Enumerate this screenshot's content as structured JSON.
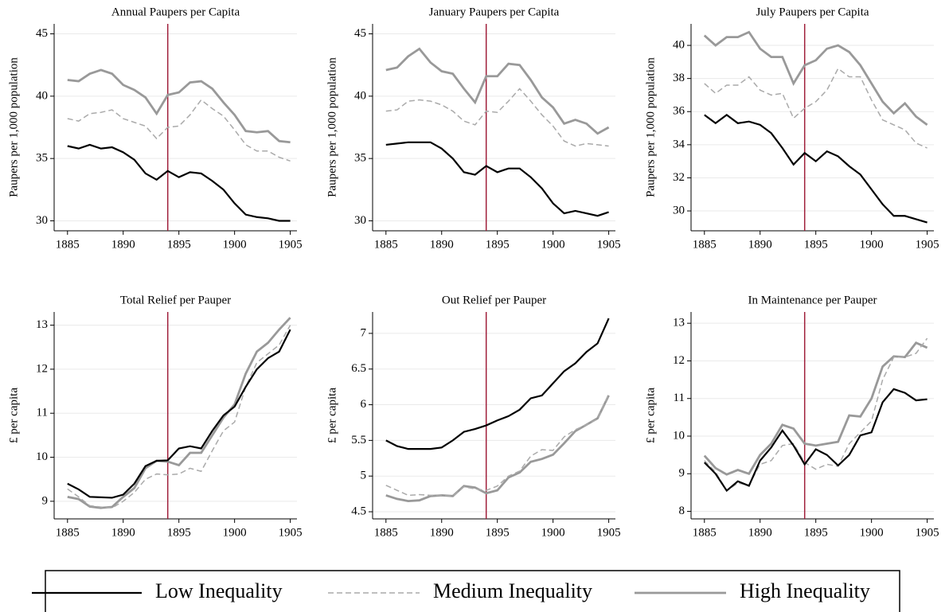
{
  "chart_data": [
    {
      "type": "line",
      "title": "Annual Paupers per Capita",
      "y_label": "Paupers per 1,000 population",
      "x": [
        1885,
        1886,
        1887,
        1888,
        1889,
        1890,
        1891,
        1892,
        1893,
        1894,
        1895,
        1896,
        1897,
        1898,
        1899,
        1900,
        1901,
        1902,
        1903,
        1904,
        1905
      ],
      "xlim": [
        1883.8,
        1905.6
      ],
      "xticks": [
        1885,
        1890,
        1895,
        1900,
        1905
      ],
      "ylim": [
        29.2,
        45.8
      ],
      "yticks": [
        30,
        35,
        40,
        45
      ],
      "grid": true,
      "vline": 1894,
      "vline_color": "#a0203c",
      "series": [
        {
          "name": "Low Inequality",
          "color": "#000000",
          "dashed": false,
          "values": [
            36.0,
            35.8,
            36.1,
            35.8,
            35.9,
            35.5,
            34.9,
            33.8,
            33.3,
            34.0,
            33.5,
            33.9,
            33.8,
            33.2,
            32.5,
            31.4,
            30.5,
            30.3,
            30.2,
            30.0,
            30.0
          ]
        },
        {
          "name": "Medium Inequality",
          "color": "#aaaaaa",
          "dashed": true,
          "values": [
            38.2,
            38.0,
            38.6,
            38.7,
            38.9,
            38.2,
            37.9,
            37.6,
            36.6,
            37.5,
            37.6,
            38.5,
            39.7,
            39.0,
            38.4,
            37.3,
            36.1,
            35.6,
            35.6,
            35.1,
            34.8
          ]
        },
        {
          "name": "High Inequality",
          "color": "#999999",
          "dashed": false,
          "values": [
            41.3,
            41.2,
            41.8,
            42.1,
            41.8,
            40.9,
            40.5,
            39.9,
            38.6,
            40.1,
            40.3,
            41.1,
            41.2,
            40.6,
            39.5,
            38.5,
            37.2,
            37.1,
            37.2,
            36.4,
            36.3
          ]
        }
      ]
    },
    {
      "type": "line",
      "title": "January Paupers per Capita",
      "y_label": "Paupers per 1,000 population",
      "x": [
        1885,
        1886,
        1887,
        1888,
        1889,
        1890,
        1891,
        1892,
        1893,
        1894,
        1895,
        1896,
        1897,
        1898,
        1899,
        1900,
        1901,
        1902,
        1903,
        1904,
        1905
      ],
      "xlim": [
        1883.8,
        1905.6
      ],
      "xticks": [
        1885,
        1890,
        1895,
        1900,
        1905
      ],
      "ylim": [
        29.2,
        45.8
      ],
      "yticks": [
        30,
        35,
        40,
        45
      ],
      "grid": true,
      "vline": 1894,
      "vline_color": "#a0203c",
      "series": [
        {
          "name": "Low Inequality",
          "color": "#000000",
          "dashed": false,
          "values": [
            36.1,
            36.2,
            36.3,
            36.3,
            36.3,
            35.8,
            35.0,
            33.9,
            33.7,
            34.4,
            33.9,
            34.2,
            34.2,
            33.5,
            32.6,
            31.4,
            30.6,
            30.8,
            30.6,
            30.4,
            30.7
          ]
        },
        {
          "name": "Medium Inequality",
          "color": "#aaaaaa",
          "dashed": true,
          "values": [
            38.8,
            38.9,
            39.6,
            39.7,
            39.6,
            39.3,
            38.8,
            38.0,
            37.7,
            38.8,
            38.7,
            39.6,
            40.6,
            39.6,
            38.5,
            37.6,
            36.4,
            36.0,
            36.2,
            36.1,
            36.0
          ]
        },
        {
          "name": "High Inequality",
          "color": "#999999",
          "dashed": false,
          "values": [
            42.1,
            42.3,
            43.2,
            43.8,
            42.7,
            42.0,
            41.8,
            40.6,
            39.5,
            41.6,
            41.6,
            42.6,
            42.5,
            41.3,
            39.9,
            39.1,
            37.8,
            38.1,
            37.8,
            37.0,
            37.5
          ]
        }
      ]
    },
    {
      "type": "line",
      "title": "July Paupers per Capita",
      "y_label": "Paupers per 1,000 population",
      "x": [
        1885,
        1886,
        1887,
        1888,
        1889,
        1890,
        1891,
        1892,
        1893,
        1894,
        1895,
        1896,
        1897,
        1898,
        1899,
        1900,
        1901,
        1902,
        1903,
        1904,
        1905
      ],
      "xlim": [
        1883.8,
        1905.6
      ],
      "xticks": [
        1885,
        1890,
        1895,
        1900,
        1905
      ],
      "ylim": [
        28.8,
        41.3
      ],
      "yticks": [
        30,
        32,
        34,
        36,
        38,
        40
      ],
      "grid": true,
      "vline": 1894,
      "vline_color": "#a0203c",
      "series": [
        {
          "name": "Low Inequality",
          "color": "#000000",
          "dashed": false,
          "values": [
            35.8,
            35.3,
            35.8,
            35.3,
            35.4,
            35.2,
            34.7,
            33.8,
            32.8,
            33.5,
            33.0,
            33.6,
            33.3,
            32.7,
            32.2,
            31.3,
            30.4,
            29.7,
            29.7,
            29.5,
            29.3
          ]
        },
        {
          "name": "Medium Inequality",
          "color": "#aaaaaa",
          "dashed": true,
          "values": [
            37.7,
            37.1,
            37.6,
            37.6,
            38.1,
            37.3,
            37.0,
            37.1,
            35.6,
            36.2,
            36.6,
            37.3,
            38.6,
            38.1,
            38.1,
            36.7,
            35.5,
            35.2,
            34.9,
            34.1,
            33.8
          ]
        },
        {
          "name": "High Inequality",
          "color": "#999999",
          "dashed": false,
          "values": [
            40.6,
            40.0,
            40.5,
            40.5,
            40.8,
            39.8,
            39.3,
            39.3,
            37.7,
            38.8,
            39.1,
            39.8,
            40.0,
            39.6,
            38.8,
            37.7,
            36.6,
            35.9,
            36.5,
            35.7,
            35.2
          ]
        }
      ]
    },
    {
      "type": "line",
      "title": "Total Relief per Pauper",
      "y_label": "£ per capita",
      "x": [
        1885,
        1886,
        1887,
        1888,
        1889,
        1890,
        1891,
        1892,
        1893,
        1894,
        1895,
        1896,
        1897,
        1898,
        1899,
        1900,
        1901,
        1902,
        1903,
        1904,
        1905
      ],
      "xlim": [
        1883.8,
        1905.6
      ],
      "xticks": [
        1885,
        1890,
        1895,
        1900,
        1905
      ],
      "ylim": [
        8.6,
        13.3
      ],
      "yticks": [
        9,
        10,
        11,
        12,
        13
      ],
      "grid": true,
      "vline": 1894,
      "vline_color": "#a0203c",
      "series": [
        {
          "name": "Low Inequality",
          "color": "#000000",
          "dashed": false,
          "values": [
            9.4,
            9.27,
            9.1,
            9.09,
            9.08,
            9.15,
            9.4,
            9.8,
            9.92,
            9.93,
            10.2,
            10.25,
            10.2,
            10.6,
            10.95,
            11.15,
            11.6,
            12.0,
            12.25,
            12.4,
            12.9
          ]
        },
        {
          "name": "Medium Inequality",
          "color": "#aaaaaa",
          "dashed": true,
          "values": [
            9.28,
            9.1,
            8.9,
            8.87,
            8.85,
            9.0,
            9.2,
            9.5,
            9.62,
            9.6,
            9.62,
            9.75,
            9.68,
            10.15,
            10.6,
            10.8,
            11.6,
            12.15,
            12.35,
            12.55,
            13.0
          ]
        },
        {
          "name": "High Inequality",
          "color": "#999999",
          "dashed": false,
          "values": [
            9.1,
            9.05,
            8.88,
            8.85,
            8.87,
            9.1,
            9.3,
            9.75,
            9.92,
            9.9,
            9.82,
            10.1,
            10.1,
            10.5,
            10.9,
            11.2,
            11.9,
            12.4,
            12.6,
            12.9,
            13.17
          ]
        }
      ]
    },
    {
      "type": "line",
      "title": "Out Relief per Pauper",
      "y_label": "£ per capita",
      "x": [
        1885,
        1886,
        1887,
        1888,
        1889,
        1890,
        1891,
        1892,
        1893,
        1894,
        1895,
        1896,
        1897,
        1898,
        1899,
        1900,
        1901,
        1902,
        1903,
        1904,
        1905
      ],
      "xlim": [
        1883.8,
        1905.6
      ],
      "xticks": [
        1885,
        1890,
        1895,
        1900,
        1905
      ],
      "ylim": [
        4.4,
        7.3
      ],
      "yticks": [
        4.5,
        5,
        5.5,
        6,
        6.5,
        7
      ],
      "grid": true,
      "vline": 1894,
      "vline_color": "#a0203c",
      "series": [
        {
          "name": "Low Inequality",
          "color": "#000000",
          "dashed": false,
          "values": [
            5.5,
            5.42,
            5.38,
            5.38,
            5.38,
            5.4,
            5.5,
            5.62,
            5.66,
            5.71,
            5.78,
            5.84,
            5.93,
            6.09,
            6.13,
            6.3,
            6.47,
            6.58,
            6.74,
            6.86,
            7.21
          ]
        },
        {
          "name": "Medium Inequality",
          "color": "#aaaaaa",
          "dashed": true,
          "values": [
            4.87,
            4.8,
            4.73,
            4.74,
            4.73,
            4.73,
            4.72,
            4.85,
            4.82,
            4.8,
            4.86,
            5.0,
            5.07,
            5.28,
            5.37,
            5.36,
            5.55,
            5.65,
            5.72,
            5.8,
            6.15
          ]
        },
        {
          "name": "High Inequality",
          "color": "#999999",
          "dashed": false,
          "values": [
            4.73,
            4.68,
            4.65,
            4.66,
            4.72,
            4.73,
            4.72,
            4.86,
            4.84,
            4.76,
            4.8,
            4.98,
            5.05,
            5.2,
            5.24,
            5.3,
            5.46,
            5.63,
            5.72,
            5.81,
            6.13
          ]
        }
      ]
    },
    {
      "type": "line",
      "title": "In Maintenance per Pauper",
      "y_label": "£ per capita",
      "x": [
        1885,
        1886,
        1887,
        1888,
        1889,
        1890,
        1891,
        1892,
        1893,
        1894,
        1895,
        1896,
        1897,
        1898,
        1899,
        1900,
        1901,
        1902,
        1903,
        1904,
        1905
      ],
      "xlim": [
        1883.8,
        1905.6
      ],
      "xticks": [
        1885,
        1890,
        1895,
        1900,
        1905
      ],
      "ylim": [
        7.8,
        13.3
      ],
      "yticks": [
        8,
        9,
        10,
        11,
        12,
        13
      ],
      "grid": true,
      "vline": 1894,
      "vline_color": "#a0203c",
      "series": [
        {
          "name": "Low Inequality",
          "color": "#000000",
          "dashed": false,
          "values": [
            9.3,
            9.0,
            8.55,
            8.8,
            8.68,
            9.35,
            9.7,
            10.15,
            9.75,
            9.25,
            9.65,
            9.5,
            9.22,
            9.5,
            10.02,
            10.1,
            10.9,
            11.25,
            11.15,
            10.95,
            10.98
          ]
        },
        {
          "name": "Medium Inequality",
          "color": "#aaaaaa",
          "dashed": true,
          "values": [
            9.35,
            9.05,
            8.55,
            8.75,
            8.7,
            9.25,
            9.35,
            9.75,
            9.8,
            9.3,
            9.12,
            9.25,
            9.2,
            9.8,
            10.1,
            10.4,
            11.5,
            12.1,
            12.1,
            12.2,
            12.6
          ]
        },
        {
          "name": "High Inequality",
          "color": "#999999",
          "dashed": false,
          "values": [
            9.48,
            9.15,
            8.98,
            9.1,
            9.0,
            9.5,
            9.8,
            10.3,
            10.2,
            9.8,
            9.75,
            9.8,
            9.85,
            10.55,
            10.52,
            11.0,
            11.85,
            12.12,
            12.1,
            12.48,
            12.35
          ]
        }
      ]
    }
  ]
}
